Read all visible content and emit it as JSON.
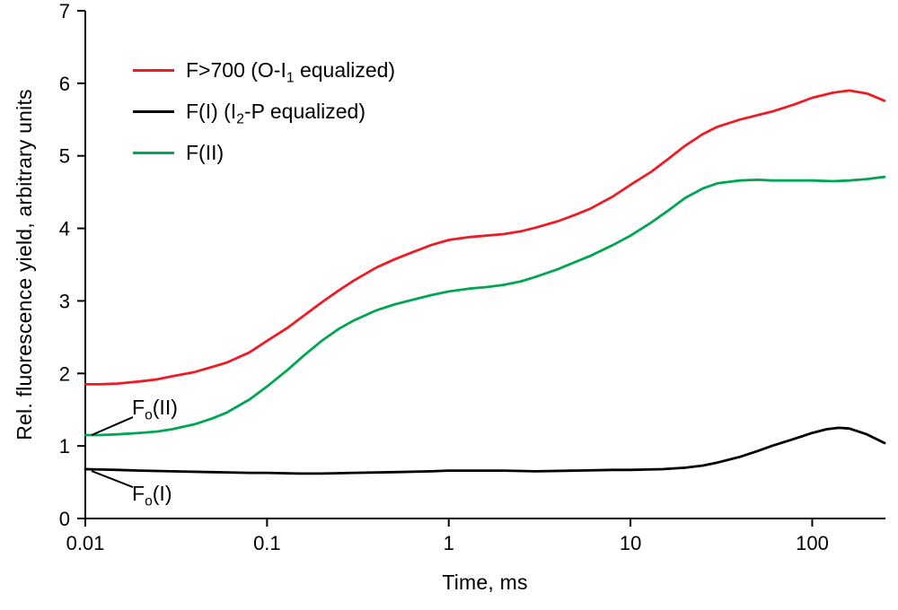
{
  "chart_data": {
    "type": "line",
    "title": "",
    "xlabel": "Time, ms",
    "ylabel": "Rel. fluorescence yield, arbitrary units",
    "x_scale": "log",
    "xlim": [
      0.01,
      250
    ],
    "ylim": [
      0,
      7
    ],
    "xticks": [
      0.01,
      0.1,
      1,
      10,
      100
    ],
    "xtick_labels": [
      "0.01",
      "0.1",
      "1",
      "10",
      "100"
    ],
    "yticks": [
      0,
      1,
      2,
      3,
      4,
      5,
      6,
      7
    ],
    "ytick_labels": [
      "0",
      "1",
      "2",
      "3",
      "4",
      "5",
      "6",
      "7"
    ],
    "grid": false,
    "legend_position": "top-left-inside",
    "legend": [
      {
        "color": "#ed1c24",
        "pre": "F>700 (O-I",
        "sub": "1",
        "post": " equalized)"
      },
      {
        "color": "#000000",
        "pre": "F(I) (I",
        "sub": "2",
        "post": "-P equalized)"
      },
      {
        "color": "#00a651",
        "pre": "F(II)",
        "sub": "",
        "post": ""
      }
    ],
    "series": [
      {
        "name": "F>700 (O-I₁ equalized)",
        "color": "#ed1c24",
        "points": [
          [
            0.01,
            1.85
          ],
          [
            0.012,
            1.85
          ],
          [
            0.015,
            1.86
          ],
          [
            0.02,
            1.89
          ],
          [
            0.025,
            1.92
          ],
          [
            0.03,
            1.96
          ],
          [
            0.04,
            2.02
          ],
          [
            0.05,
            2.09
          ],
          [
            0.06,
            2.15
          ],
          [
            0.08,
            2.29
          ],
          [
            0.1,
            2.45
          ],
          [
            0.13,
            2.63
          ],
          [
            0.16,
            2.8
          ],
          [
            0.2,
            2.98
          ],
          [
            0.25,
            3.15
          ],
          [
            0.3,
            3.28
          ],
          [
            0.4,
            3.46
          ],
          [
            0.5,
            3.57
          ],
          [
            0.6,
            3.65
          ],
          [
            0.8,
            3.77
          ],
          [
            1,
            3.84
          ],
          [
            1.3,
            3.88
          ],
          [
            1.6,
            3.9
          ],
          [
            2,
            3.92
          ],
          [
            2.5,
            3.96
          ],
          [
            3,
            4.01
          ],
          [
            4,
            4.1
          ],
          [
            5,
            4.19
          ],
          [
            6,
            4.27
          ],
          [
            8,
            4.44
          ],
          [
            10,
            4.6
          ],
          [
            13,
            4.78
          ],
          [
            16,
            4.95
          ],
          [
            20,
            5.14
          ],
          [
            25,
            5.3
          ],
          [
            30,
            5.4
          ],
          [
            40,
            5.5
          ],
          [
            50,
            5.56
          ],
          [
            60,
            5.61
          ],
          [
            80,
            5.71
          ],
          [
            100,
            5.8
          ],
          [
            130,
            5.87
          ],
          [
            160,
            5.9
          ],
          [
            200,
            5.86
          ],
          [
            250,
            5.76
          ]
        ]
      },
      {
        "name": "F(I) (I₂-P equalized)",
        "color": "#000000",
        "points": [
          [
            0.01,
            0.68
          ],
          [
            0.015,
            0.67
          ],
          [
            0.02,
            0.66
          ],
          [
            0.03,
            0.65
          ],
          [
            0.05,
            0.64
          ],
          [
            0.08,
            0.63
          ],
          [
            0.1,
            0.63
          ],
          [
            0.15,
            0.62
          ],
          [
            0.2,
            0.62
          ],
          [
            0.3,
            0.63
          ],
          [
            0.5,
            0.64
          ],
          [
            0.8,
            0.65
          ],
          [
            1,
            0.66
          ],
          [
            1.5,
            0.66
          ],
          [
            2,
            0.66
          ],
          [
            3,
            0.65
          ],
          [
            5,
            0.66
          ],
          [
            8,
            0.67
          ],
          [
            10,
            0.67
          ],
          [
            15,
            0.68
          ],
          [
            20,
            0.7
          ],
          [
            25,
            0.73
          ],
          [
            30,
            0.77
          ],
          [
            40,
            0.85
          ],
          [
            50,
            0.93
          ],
          [
            60,
            1.0
          ],
          [
            80,
            1.1
          ],
          [
            100,
            1.18
          ],
          [
            120,
            1.23
          ],
          [
            140,
            1.25
          ],
          [
            160,
            1.24
          ],
          [
            200,
            1.16
          ],
          [
            250,
            1.04
          ]
        ]
      },
      {
        "name": "F(II)",
        "color": "#00a651",
        "points": [
          [
            0.01,
            1.15
          ],
          [
            0.012,
            1.15
          ],
          [
            0.015,
            1.16
          ],
          [
            0.02,
            1.18
          ],
          [
            0.025,
            1.2
          ],
          [
            0.03,
            1.23
          ],
          [
            0.04,
            1.3
          ],
          [
            0.05,
            1.38
          ],
          [
            0.06,
            1.46
          ],
          [
            0.08,
            1.64
          ],
          [
            0.1,
            1.82
          ],
          [
            0.13,
            2.05
          ],
          [
            0.16,
            2.25
          ],
          [
            0.2,
            2.45
          ],
          [
            0.25,
            2.62
          ],
          [
            0.3,
            2.73
          ],
          [
            0.4,
            2.87
          ],
          [
            0.5,
            2.95
          ],
          [
            0.6,
            3.0
          ],
          [
            0.8,
            3.08
          ],
          [
            1,
            3.13
          ],
          [
            1.3,
            3.17
          ],
          [
            1.6,
            3.19
          ],
          [
            2,
            3.22
          ],
          [
            2.5,
            3.27
          ],
          [
            3,
            3.33
          ],
          [
            4,
            3.44
          ],
          [
            5,
            3.54
          ],
          [
            6,
            3.62
          ],
          [
            8,
            3.77
          ],
          [
            10,
            3.9
          ],
          [
            13,
            4.08
          ],
          [
            16,
            4.24
          ],
          [
            20,
            4.42
          ],
          [
            25,
            4.55
          ],
          [
            30,
            4.62
          ],
          [
            40,
            4.66
          ],
          [
            50,
            4.67
          ],
          [
            60,
            4.66
          ],
          [
            80,
            4.66
          ],
          [
            100,
            4.66
          ],
          [
            130,
            4.65
          ],
          [
            160,
            4.66
          ],
          [
            200,
            4.68
          ],
          [
            250,
            4.71
          ]
        ]
      }
    ],
    "annotations": [
      {
        "pre": "F",
        "sub": "o",
        "post": "(II)",
        "target": [
          0.01,
          1.15
        ],
        "placement": "above"
      },
      {
        "pre": "F",
        "sub": "o",
        "post": "(I)",
        "target": [
          0.01,
          0.68
        ],
        "placement": "below"
      }
    ]
  }
}
